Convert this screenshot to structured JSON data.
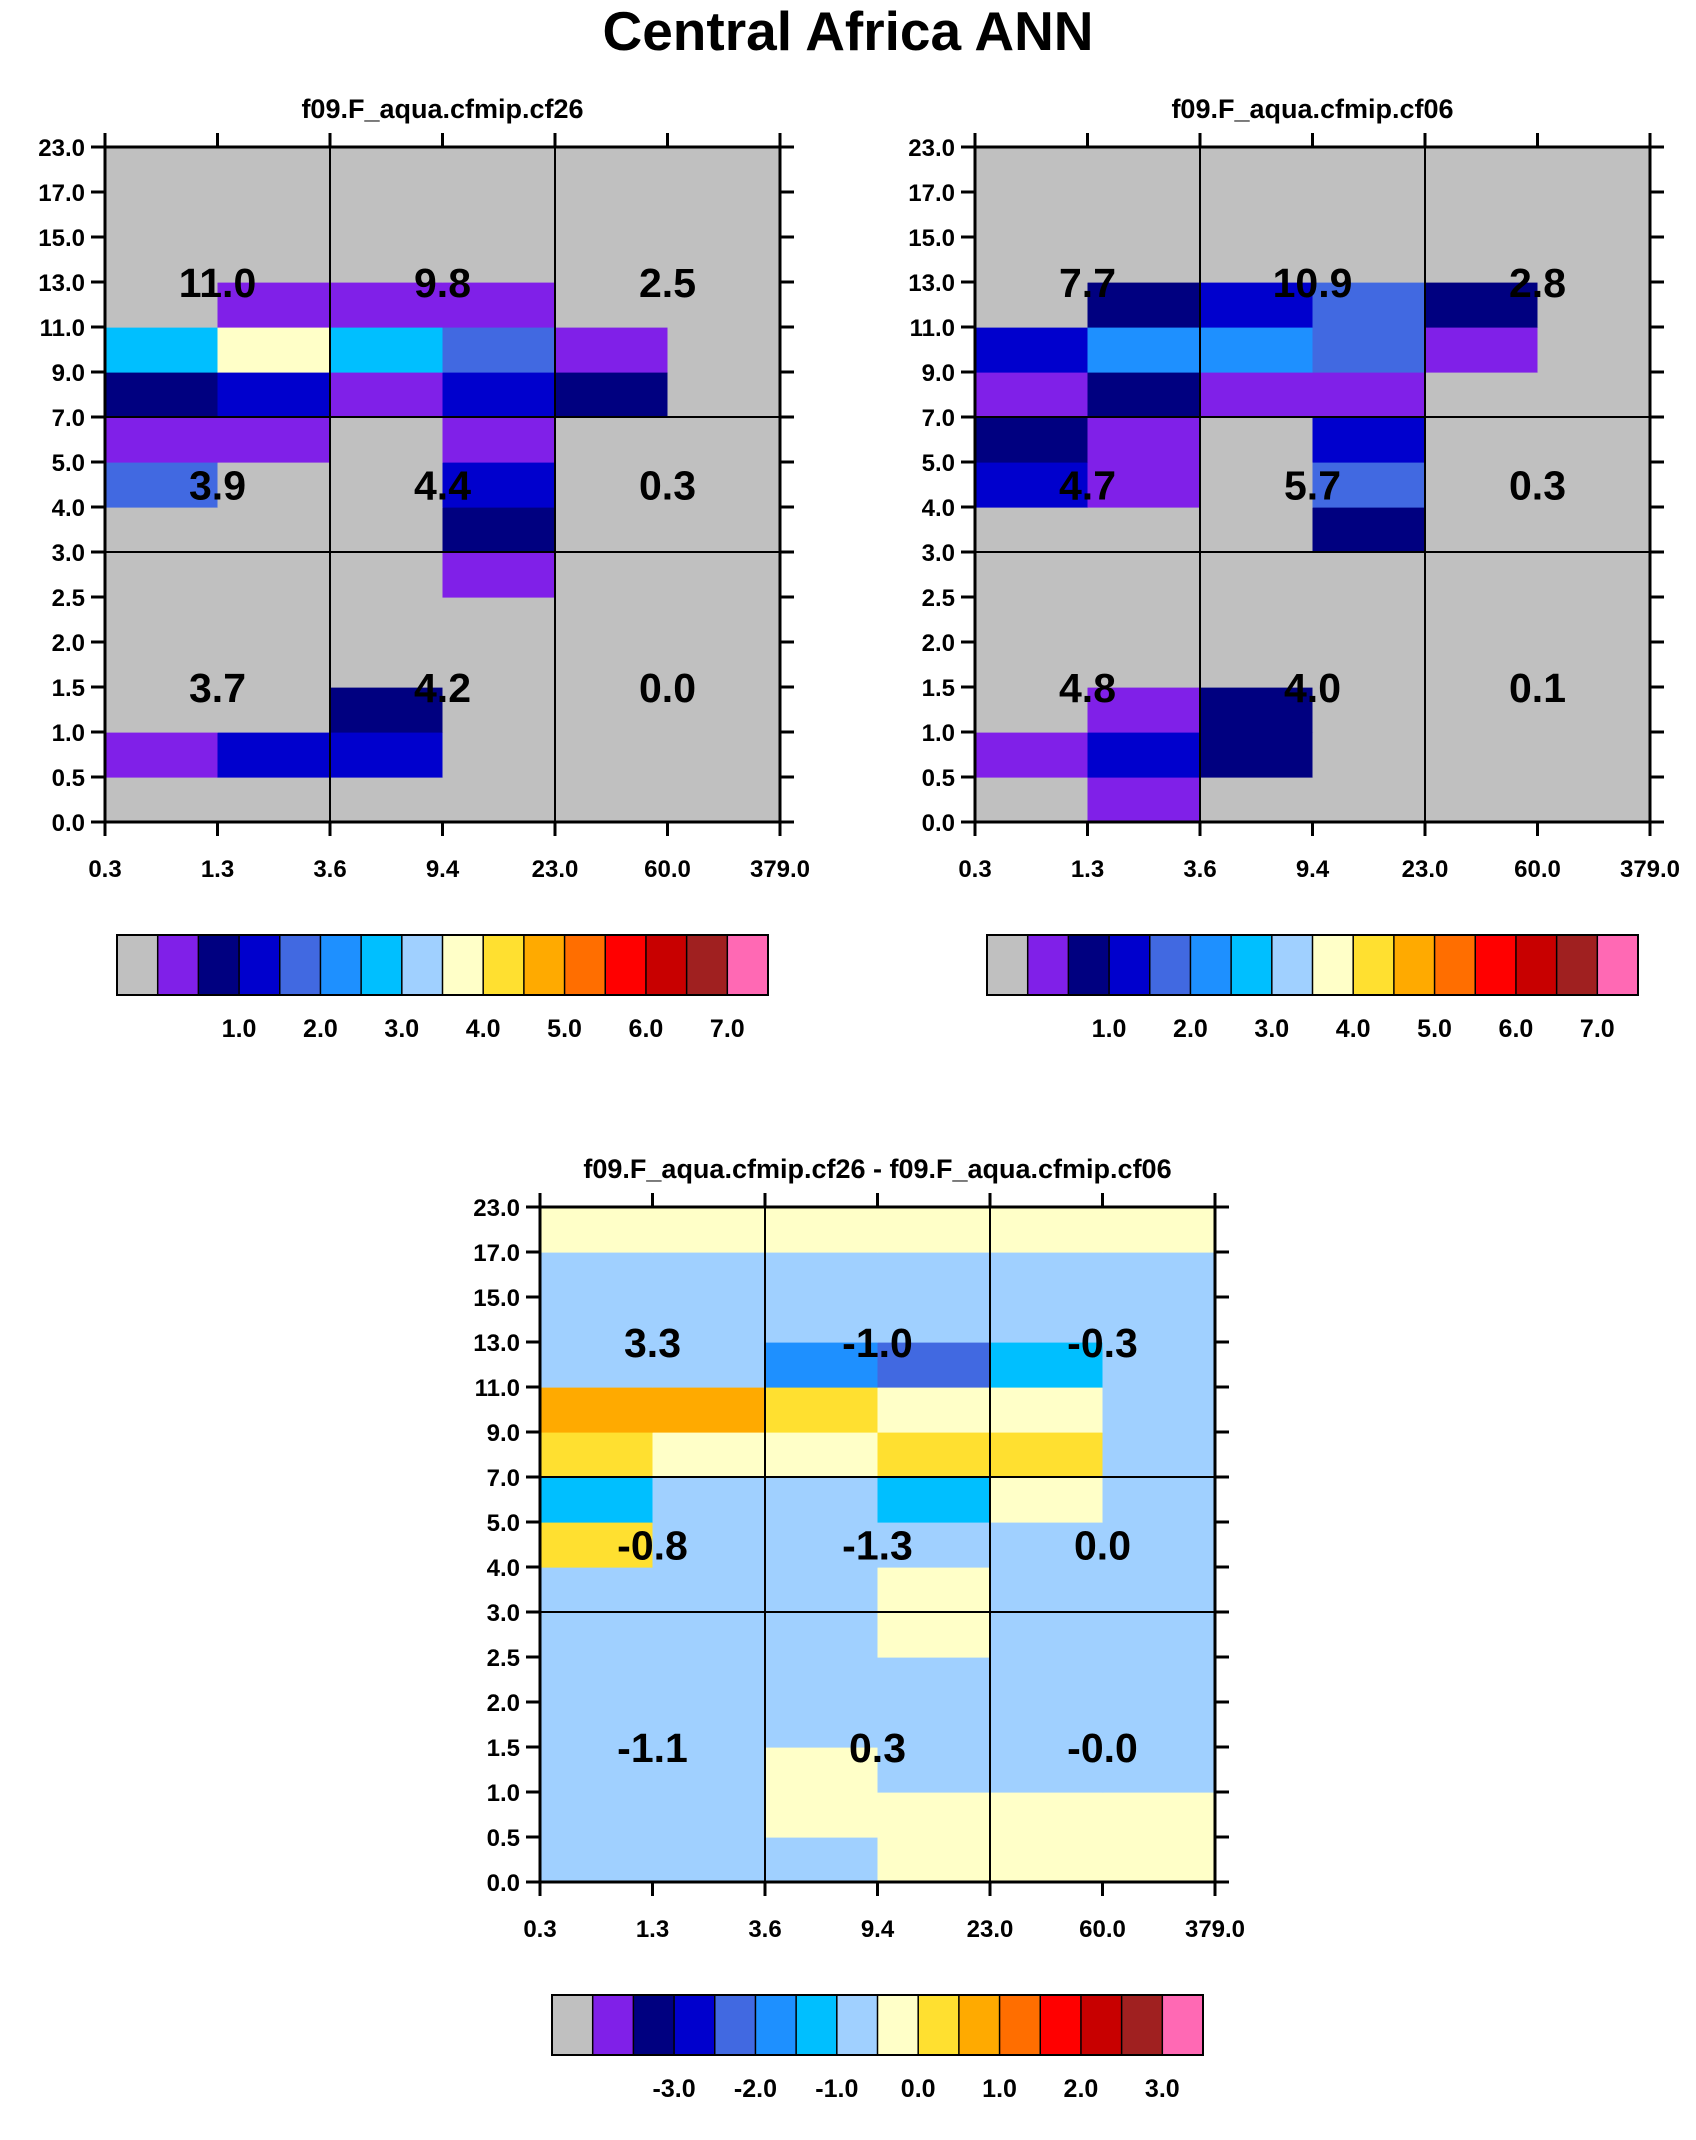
{
  "title": "Central Africa ANN",
  "palettes": {
    "abs": [
      "#c0c0c0",
      "#8020e8",
      "#000080",
      "#0000cd",
      "#4169e1",
      "#1e90ff",
      "#00bfff",
      "#a0d0ff",
      "#ffffc8",
      "#ffe030",
      "#ffaa00",
      "#ff6e00",
      "#ff0000",
      "#c80000",
      "#a02020",
      "#ff69b4"
    ],
    "diff": [
      "#c0c0c0",
      "#8020e8",
      "#000080",
      "#0000cd",
      "#4169e1",
      "#1e90ff",
      "#00bfff",
      "#a0d0ff",
      "#ffffc8",
      "#ffe030",
      "#ffaa00",
      "#ff6e00",
      "#ff0000",
      "#c80000",
      "#a02020",
      "#ff69b4"
    ]
  },
  "chart_data": [
    {
      "type": "heatmap",
      "title": "f09.F_aqua.cfmip.cf26",
      "xticks": [
        "0.3",
        "1.3",
        "3.6",
        "9.4",
        "23.0",
        "60.0",
        "379.0"
      ],
      "yticks": [
        "0.0",
        "0.5",
        "1.0",
        "1.5",
        "2.0",
        "2.5",
        "3.0",
        "4.0",
        "5.0",
        "7.0",
        "9.0",
        "11.0",
        "13.0",
        "15.0",
        "17.0",
        "23.0"
      ],
      "palette": "abs",
      "colorbar_labels": [
        "1.0",
        "2.0",
        "3.0",
        "4.0",
        "5.0",
        "6.0",
        "7.0"
      ],
      "cells": [
        [
          0,
          0,
          0,
          0,
          0,
          0
        ],
        [
          1,
          3,
          3,
          0,
          0,
          0
        ],
        [
          0,
          0,
          2,
          0,
          0,
          0
        ],
        [
          0,
          0,
          0,
          0,
          0,
          0
        ],
        [
          0,
          0,
          0,
          0,
          0,
          0
        ],
        [
          0,
          0,
          0,
          1,
          0,
          0
        ],
        [
          0,
          0,
          0,
          2,
          0,
          0
        ],
        [
          4,
          0,
          0,
          3,
          0,
          0
        ],
        [
          1,
          1,
          0,
          1,
          0,
          0
        ],
        [
          2,
          3,
          1,
          3,
          2,
          0
        ],
        [
          6,
          8,
          6,
          4,
          1,
          0
        ],
        [
          0,
          1,
          1,
          1,
          0,
          0
        ],
        [
          0,
          0,
          0,
          0,
          0,
          0
        ],
        [
          0,
          0,
          0,
          0,
          0,
          0
        ],
        [
          0,
          0,
          0,
          0,
          0,
          0
        ]
      ],
      "totals": [
        [
          "3.7",
          "4.2",
          "0.0"
        ],
        [
          "3.9",
          "4.4",
          "0.3"
        ],
        [
          "11.0",
          "9.8",
          "2.5"
        ]
      ]
    },
    {
      "type": "heatmap",
      "title": "f09.F_aqua.cfmip.cf06",
      "xticks": [
        "0.3",
        "1.3",
        "3.6",
        "9.4",
        "23.0",
        "60.0",
        "379.0"
      ],
      "yticks": [
        "0.0",
        "0.5",
        "1.0",
        "1.5",
        "2.0",
        "2.5",
        "3.0",
        "4.0",
        "5.0",
        "7.0",
        "9.0",
        "11.0",
        "13.0",
        "15.0",
        "17.0",
        "23.0"
      ],
      "palette": "abs",
      "colorbar_labels": [
        "1.0",
        "2.0",
        "3.0",
        "4.0",
        "5.0",
        "6.0",
        "7.0"
      ],
      "cells": [
        [
          0,
          1,
          0,
          0,
          0,
          0
        ],
        [
          1,
          3,
          2,
          0,
          0,
          0
        ],
        [
          0,
          1,
          2,
          0,
          0,
          0
        ],
        [
          0,
          0,
          0,
          0,
          0,
          0
        ],
        [
          0,
          0,
          0,
          0,
          0,
          0
        ],
        [
          0,
          0,
          0,
          0,
          0,
          0
        ],
        [
          0,
          0,
          0,
          2,
          0,
          0
        ],
        [
          3,
          1,
          0,
          4,
          0,
          0
        ],
        [
          2,
          1,
          0,
          3,
          0,
          0
        ],
        [
          1,
          2,
          1,
          1,
          0,
          0
        ],
        [
          3,
          5,
          5,
          4,
          1,
          0
        ],
        [
          0,
          2,
          3,
          4,
          2,
          0
        ],
        [
          0,
          0,
          0,
          0,
          0,
          0
        ],
        [
          0,
          0,
          0,
          0,
          0,
          0
        ],
        [
          0,
          0,
          0,
          0,
          0,
          0
        ]
      ],
      "totals": [
        [
          "4.8",
          "4.0",
          "0.1"
        ],
        [
          "4.7",
          "5.7",
          "0.3"
        ],
        [
          "7.7",
          "10.9",
          "2.8"
        ]
      ]
    },
    {
      "type": "heatmap",
      "title": "f09.F_aqua.cfmip.cf26 - f09.F_aqua.cfmip.cf06",
      "xticks": [
        "0.3",
        "1.3",
        "3.6",
        "9.4",
        "23.0",
        "60.0",
        "379.0"
      ],
      "yticks": [
        "0.0",
        "0.5",
        "1.0",
        "1.5",
        "2.0",
        "2.5",
        "3.0",
        "4.0",
        "5.0",
        "7.0",
        "9.0",
        "11.0",
        "13.0",
        "15.0",
        "17.0",
        "23.0"
      ],
      "palette": "diff",
      "colorbar_labels": [
        "-3.0",
        "-2.0",
        "-1.0",
        "0.0",
        "1.0",
        "2.0",
        "3.0"
      ],
      "cells": [
        [
          7,
          7,
          7,
          8,
          8,
          8
        ],
        [
          7,
          7,
          8,
          8,
          8,
          8
        ],
        [
          7,
          7,
          8,
          7,
          7,
          7
        ],
        [
          7,
          7,
          7,
          7,
          7,
          7
        ],
        [
          7,
          7,
          7,
          7,
          7,
          7
        ],
        [
          7,
          7,
          7,
          8,
          7,
          7
        ],
        [
          7,
          7,
          7,
          8,
          7,
          7
        ],
        [
          9,
          7,
          7,
          7,
          7,
          7
        ],
        [
          6,
          7,
          7,
          6,
          8,
          7
        ],
        [
          9,
          8,
          8,
          9,
          9,
          7
        ],
        [
          10,
          10,
          9,
          8,
          8,
          7
        ],
        [
          7,
          7,
          5,
          4,
          6,
          7
        ],
        [
          7,
          7,
          7,
          7,
          7,
          7
        ],
        [
          7,
          7,
          7,
          7,
          7,
          7
        ],
        [
          8,
          8,
          8,
          8,
          8,
          8
        ]
      ],
      "totals": [
        [
          "-1.1",
          "0.3",
          "-0.0"
        ],
        [
          "-0.8",
          "-1.3",
          "0.0"
        ],
        [
          "3.3",
          "-1.0",
          "-0.3"
        ]
      ]
    }
  ]
}
